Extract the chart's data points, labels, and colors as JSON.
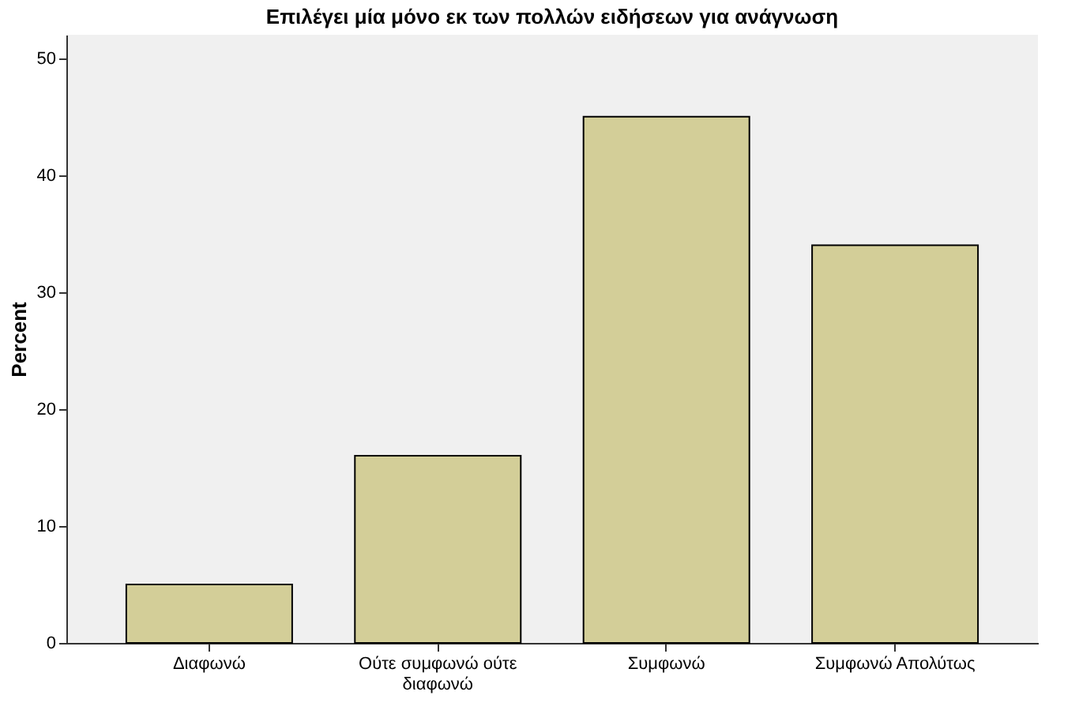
{
  "chart_data": {
    "type": "bar",
    "title": "Επιλέγει μία μόνο εκ των πολλών ειδήσεων για ανάγνωση",
    "ylabel": "Percent",
    "categories": [
      "Διαφωνώ",
      "Ούτε συμφωνώ ούτε διαφωνώ",
      "Συμφωνώ",
      "Συμφωνώ Απολύτως"
    ],
    "values": [
      5,
      16,
      45,
      34
    ],
    "color": "#d3ce98",
    "ylim": [
      0,
      52
    ],
    "yticks": [
      0,
      10,
      20,
      30,
      40,
      50
    ],
    "grid": false
  }
}
